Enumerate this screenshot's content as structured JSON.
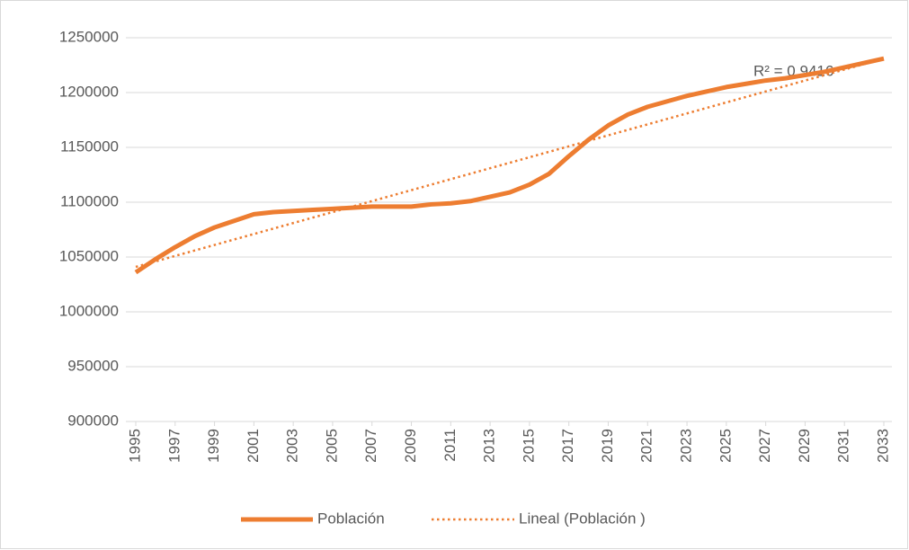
{
  "chart_data": {
    "type": "line",
    "annotation": "R² = 0.9416",
    "x": [
      1995,
      1996,
      1997,
      1998,
      1999,
      2000,
      2001,
      2002,
      2003,
      2004,
      2005,
      2006,
      2007,
      2008,
      2009,
      2010,
      2011,
      2012,
      2013,
      2014,
      2015,
      2016,
      2017,
      2018,
      2019,
      2020,
      2021,
      2022,
      2023,
      2024,
      2025,
      2026,
      2027,
      2028,
      2029,
      2030,
      2031,
      2032,
      2033
    ],
    "series": [
      {
        "name": "Población",
        "color": "#ed7d31",
        "style": "solid",
        "values": [
          1036000,
          1048000,
          1059000,
          1069000,
          1077000,
          1083000,
          1089000,
          1091000,
          1092000,
          1093000,
          1094000,
          1095000,
          1096000,
          1096000,
          1096000,
          1098000,
          1099000,
          1101000,
          1105000,
          1109000,
          1116000,
          1126000,
          1142000,
          1157000,
          1170000,
          1180000,
          1187000,
          1192000,
          1197000,
          1201000,
          1205000,
          1208000,
          1211000,
          1213000,
          1216000,
          1219000,
          1223000,
          1227000,
          1231000
        ]
      },
      {
        "name": "Lineal (Población )",
        "color": "#ed7d31",
        "style": "dotted",
        "x": [
          1995,
          2033
        ],
        "values": [
          1041000,
          1231000
        ]
      }
    ],
    "xlim": [
      1995,
      2033
    ],
    "xticks": [
      1995,
      1997,
      1999,
      2001,
      2003,
      2005,
      2007,
      2009,
      2011,
      2013,
      2015,
      2017,
      2019,
      2021,
      2023,
      2025,
      2027,
      2029,
      2031,
      2033
    ],
    "ylim": [
      900000,
      1250000
    ],
    "yticks": [
      900000,
      950000,
      1000000,
      1050000,
      1100000,
      1150000,
      1200000,
      1250000
    ],
    "grid": true,
    "legend": "bottom"
  }
}
